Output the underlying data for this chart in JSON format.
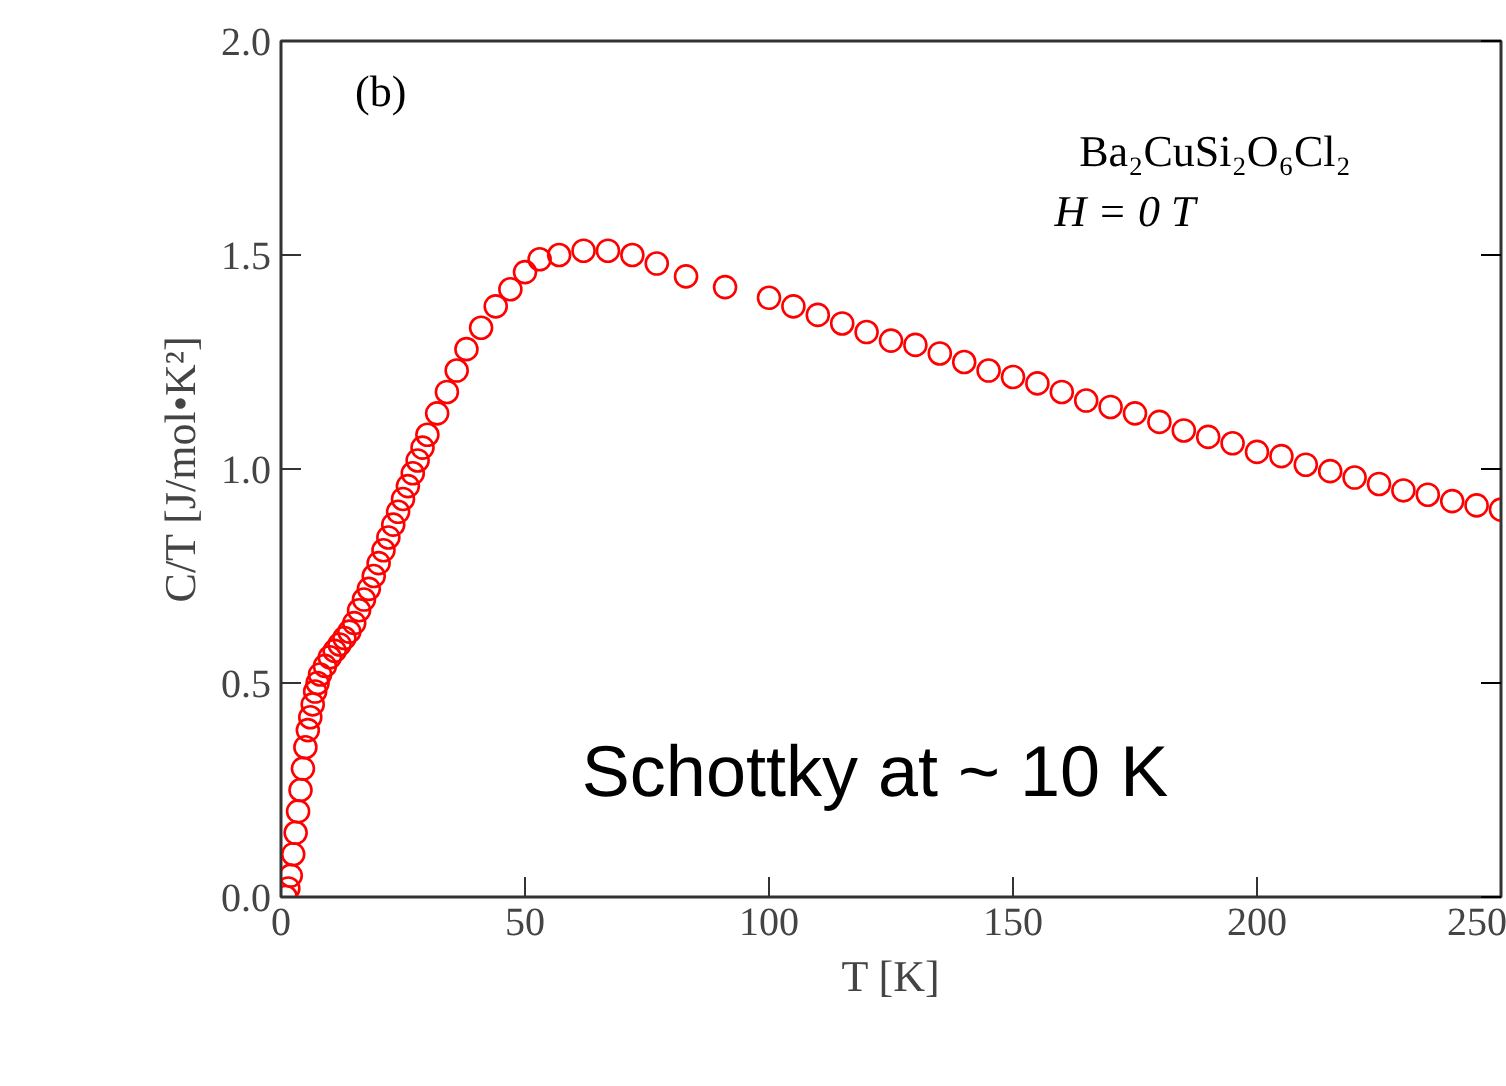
{
  "chart_data": {
    "type": "scatter",
    "xlabel": "T [K]",
    "ylabel": "C/T [J/mol•K²]",
    "annotations": [
      "(b)",
      "Ba₂CuSi₂O₆Cl₂",
      "H = 0 T",
      "Schottky at ~ 10 K"
    ],
    "xlim": [
      0,
      250
    ],
    "ylim": [
      0,
      2.0
    ],
    "xticks": [
      0,
      50,
      100,
      150,
      200,
      250
    ],
    "yticks": [
      {
        "value": 0,
        "label": "0.0"
      },
      {
        "value": 0.5,
        "label": "0.5"
      },
      {
        "value": 1,
        "label": "1.0"
      },
      {
        "value": 1.5,
        "label": "1.5"
      },
      {
        "value": 2,
        "label": "2.0"
      }
    ],
    "grid": false,
    "marker": "circle",
    "series": [
      {
        "color": "#ff0000",
        "x": [
          1,
          1.5,
          2,
          2.5,
          3,
          3.5,
          4,
          4.5,
          5,
          5.5,
          6,
          6.5,
          7,
          7.5,
          8,
          9,
          10,
          11,
          12,
          13,
          14,
          15,
          16,
          17,
          18,
          19,
          20,
          21,
          22,
          23,
          24,
          25,
          26,
          27,
          28,
          29,
          30,
          32,
          34,
          36,
          38,
          41,
          44,
          47,
          50,
          53,
          57,
          62,
          67,
          72,
          77,
          83,
          91,
          100,
          105,
          110,
          115,
          120,
          125,
          130,
          135,
          140,
          145,
          150,
          155,
          160,
          165,
          170,
          175,
          180,
          185,
          190,
          195,
          200,
          205,
          210,
          215,
          220,
          225,
          230,
          235,
          240,
          245,
          250
        ],
        "values": [
          0.0,
          0.02,
          0.05,
          0.1,
          0.15,
          0.2,
          0.25,
          0.3,
          0.35,
          0.39,
          0.42,
          0.45,
          0.48,
          0.5,
          0.52,
          0.54,
          0.56,
          0.575,
          0.59,
          0.605,
          0.62,
          0.64,
          0.67,
          0.695,
          0.72,
          0.75,
          0.78,
          0.81,
          0.84,
          0.87,
          0.9,
          0.93,
          0.96,
          0.99,
          1.02,
          1.05,
          1.08,
          1.13,
          1.18,
          1.23,
          1.28,
          1.33,
          1.38,
          1.42,
          1.46,
          1.49,
          1.5,
          1.51,
          1.51,
          1.5,
          1.48,
          1.45,
          1.425,
          1.4,
          1.38,
          1.36,
          1.34,
          1.32,
          1.3,
          1.29,
          1.27,
          1.25,
          1.23,
          1.215,
          1.2,
          1.18,
          1.16,
          1.145,
          1.13,
          1.11,
          1.09,
          1.075,
          1.06,
          1.04,
          1.03,
          1.01,
          0.995,
          0.98,
          0.965,
          0.95,
          0.94,
          0.925,
          0.915,
          0.905
        ]
      }
    ]
  }
}
